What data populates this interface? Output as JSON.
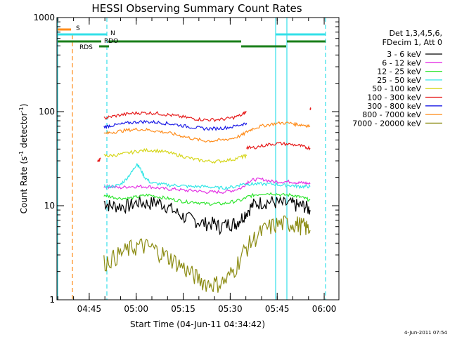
{
  "chart_data": {
    "type": "line",
    "title": "HESSI Observing Summary Count Rates",
    "xlabel": "Start Time (04-Jun-11 04:34:42)",
    "ylabel_parts": [
      "Count Rate (s",
      "-1",
      " detector",
      "-1",
      ")"
    ],
    "ylim": [
      1,
      1000
    ],
    "yscale": "log",
    "xlim_minutes": [
      0,
      90
    ],
    "y_ticks": [
      {
        "v": 1,
        "label": "1"
      },
      {
        "v": 10,
        "label": "10"
      },
      {
        "v": 100,
        "label": "100"
      },
      {
        "v": 1000,
        "label": "1000"
      }
    ],
    "x_ticks": [
      {
        "m": 10.3,
        "label": "04:45"
      },
      {
        "m": 25.3,
        "label": "05:00"
      },
      {
        "m": 40.3,
        "label": "05:15"
      },
      {
        "m": 55.3,
        "label": "05:30"
      },
      {
        "m": 70.3,
        "label": "05:45"
      },
      {
        "m": 85.3,
        "label": "06:00"
      }
    ],
    "legend_header": [
      "Det 1,3,4,5,6,",
      "FDecim 1, Att 0"
    ],
    "flags": [
      {
        "label": "S",
        "color": "#ff8c1a"
      },
      {
        "label": "N",
        "color": "#33e0e8"
      },
      {
        "label": "RDO",
        "color": "#1a7f1a"
      },
      {
        "label": "RDS",
        "color": "#1a7f1a"
      }
    ],
    "series": [
      {
        "name": "3 - 6 keV",
        "color": "#000000",
        "x": [
          15,
          17,
          20,
          23,
          26,
          29,
          32,
          35,
          38,
          41,
          44,
          47,
          50,
          52,
          55,
          57,
          59,
          61,
          63,
          66,
          69,
          72,
          75,
          77,
          79,
          80.8
        ],
        "y": [
          11,
          10,
          10,
          10,
          11,
          10.5,
          11,
          10,
          8.5,
          7.5,
          7,
          6.5,
          6.5,
          6,
          6.5,
          6.5,
          7.5,
          9,
          10.5,
          11,
          11,
          10.5,
          10.5,
          10,
          10,
          9
        ]
      },
      {
        "name": "6 - 12 keV",
        "color": "#e433e4",
        "x": [
          15,
          17,
          20,
          23,
          26,
          29,
          32,
          35,
          38,
          41,
          44,
          47,
          50,
          53,
          56,
          59,
          61,
          63,
          66,
          69,
          72,
          75,
          77,
          79,
          80.8
        ],
        "y": [
          16,
          16,
          15.5,
          16,
          16,
          16,
          15.5,
          15,
          15,
          14.5,
          14.5,
          14,
          14,
          14,
          14.5,
          15.5,
          18,
          19,
          19,
          18,
          18,
          18,
          17.5,
          17.5,
          17
        ]
      },
      {
        "name": "12 - 25 keV",
        "color": "#33e633",
        "x": [
          15,
          17,
          20,
          23,
          26,
          29,
          32,
          35,
          38,
          41,
          44,
          47,
          50,
          53,
          56,
          59,
          61,
          63,
          66,
          69,
          72,
          75,
          77,
          79,
          80.8
        ],
        "y": [
          13,
          12.5,
          12,
          12,
          12.5,
          13,
          12.5,
          12,
          11.5,
          11,
          11,
          10.5,
          10.5,
          10.5,
          11,
          11.5,
          12.5,
          13,
          13.5,
          13.5,
          13,
          13,
          12.5,
          12,
          11.5
        ]
      },
      {
        "name": "25 - 50 keV",
        "color": "#33e6e6",
        "x": [
          15,
          17,
          20,
          22,
          24,
          25.5,
          26.5,
          28,
          30,
          33,
          36,
          39,
          42,
          45,
          48,
          51,
          54,
          57,
          59,
          61,
          63,
          66,
          69,
          72,
          75,
          77,
          79,
          80.8
        ],
        "y": [
          16,
          16,
          16.5,
          19,
          23,
          28,
          25,
          20,
          17.5,
          17,
          16.5,
          16.5,
          16,
          16,
          16,
          15.5,
          15.5,
          16,
          17,
          17,
          17,
          17,
          17,
          16.5,
          16.5,
          16,
          16,
          16
        ]
      },
      {
        "name": "50 - 100 keV",
        "color": "#d6d61a",
        "x": [
          15,
          17,
          20,
          23,
          26,
          29,
          32,
          35,
          38,
          41,
          44,
          47,
          50,
          53,
          56,
          59,
          60.5
        ],
        "y": [
          34,
          34,
          35,
          36.5,
          38,
          39,
          38.5,
          37,
          35,
          33,
          31,
          30,
          29.5,
          30,
          31,
          33,
          34
        ]
      },
      {
        "name": "100 - 300 keV",
        "color": "#e61a1a",
        "x": [
          15,
          17,
          20,
          23,
          26,
          29,
          32,
          35,
          38,
          41,
          44,
          47,
          50,
          53,
          56,
          59,
          60.5
        ],
        "y": [
          85,
          88,
          92,
          95,
          97,
          97,
          96,
          93,
          90,
          87,
          84,
          82,
          82,
          83,
          86,
          92,
          100
        ]
      },
      {
        "name": "300 - 800 keV",
        "color": "#1a1ae6",
        "x": [
          15,
          17,
          20,
          23,
          26,
          29,
          32,
          35,
          38,
          41,
          44,
          47,
          50,
          53,
          56,
          59,
          60.5
        ],
        "y": [
          69,
          71,
          73,
          76,
          78,
          78,
          77,
          75,
          73,
          70,
          68,
          66,
          66,
          67,
          69,
          73,
          76
        ]
      },
      {
        "name": "800 - 7000 keV",
        "color": "#ff8c1a",
        "x": [
          15,
          17,
          20,
          23,
          26,
          29,
          32,
          35,
          38,
          41,
          44,
          47,
          50,
          53,
          56,
          59,
          61,
          63,
          66,
          69,
          72,
          75,
          77,
          79,
          80.8
        ],
        "y": [
          58,
          60,
          62,
          64,
          65,
          64,
          62,
          60,
          57,
          54,
          51,
          49,
          49,
          50,
          52,
          56,
          62,
          67,
          71,
          74,
          76,
          75,
          73,
          72,
          70
        ]
      },
      {
        "name": "7000 - 20000 keV",
        "color": "#8b8b12",
        "x": [
          15,
          18,
          21,
          24,
          27,
          30,
          33,
          36,
          39,
          42,
          45,
          48,
          51,
          54,
          57,
          60,
          63,
          66,
          69,
          72,
          75,
          77,
          79,
          80.8
        ],
        "y": [
          2.5,
          2.8,
          3.2,
          3.6,
          3.8,
          3.6,
          3.2,
          2.8,
          2.4,
          2.0,
          1.7,
          1.5,
          1.5,
          1.6,
          2.2,
          3.4,
          4.5,
          5.5,
          6.2,
          6.5,
          6.5,
          6.4,
          6.0,
          5.5
        ]
      }
    ],
    "extra_segments": [
      {
        "color": "#e61a1a",
        "x": [
          60.5,
          62,
          65,
          68,
          71,
          74,
          77,
          79,
          80.8
        ],
        "y": [
          42,
          41,
          43,
          45,
          46,
          45,
          44,
          42,
          41
        ]
      },
      {
        "color": "#e61a1a",
        "x": [
          80.8,
          81
        ],
        "y": [
          108,
          108
        ]
      },
      {
        "color": "#e61a1a",
        "x": [
          13,
          14
        ],
        "y": [
          30,
          32
        ]
      }
    ],
    "legend_placement": "right",
    "grid": false,
    "footer": "4-Jun-2011 07:54"
  }
}
